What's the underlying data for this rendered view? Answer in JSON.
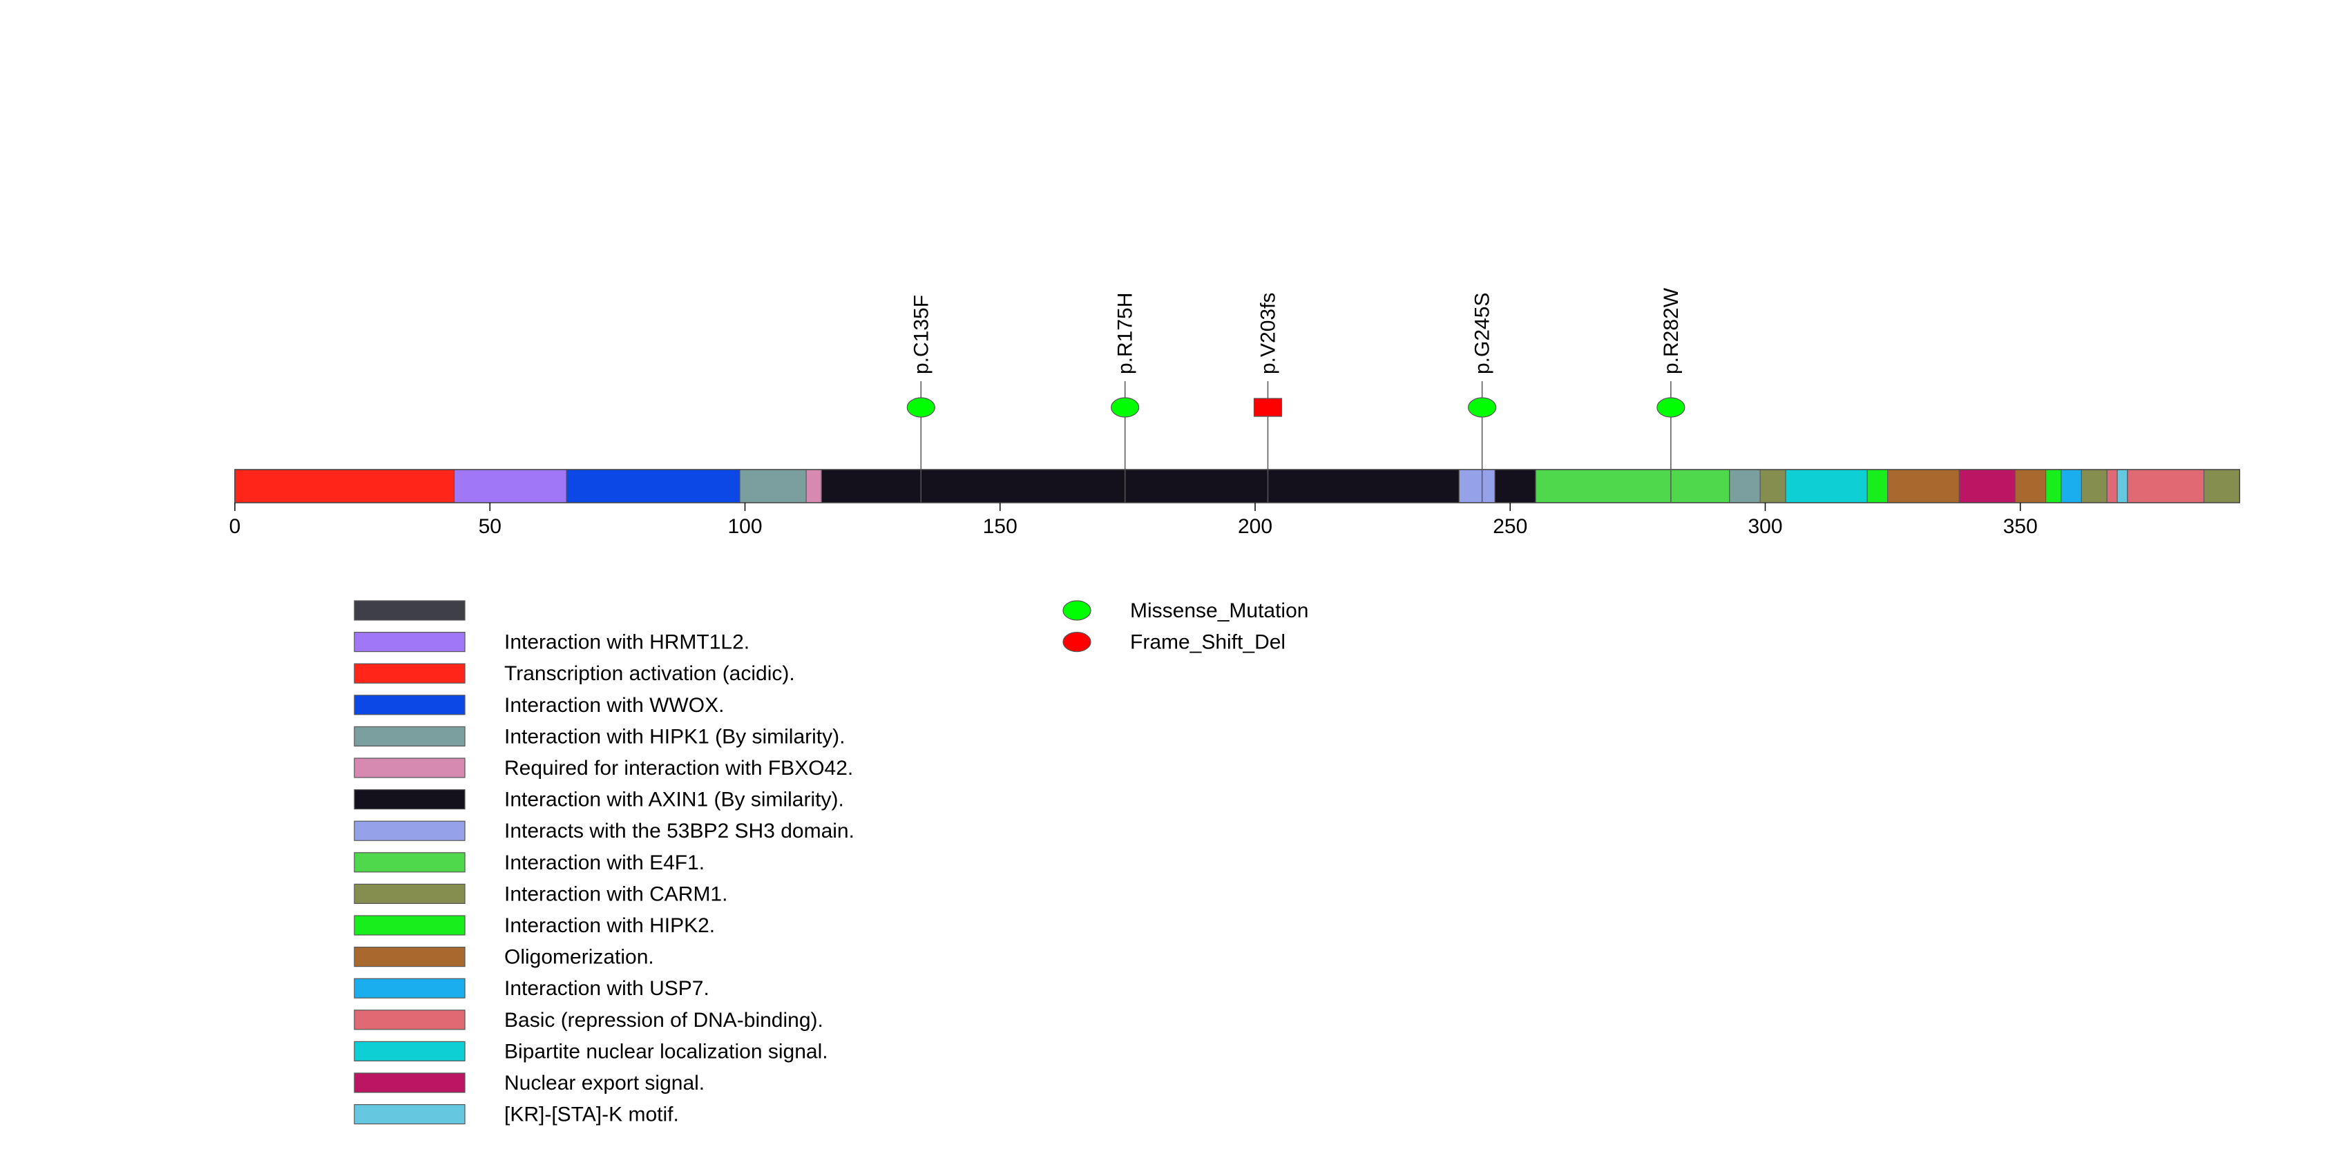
{
  "chart_data": {
    "type": "lollipop",
    "title": "",
    "protein_length": 393,
    "x_ticks": [
      0,
      50,
      100,
      150,
      200,
      250,
      300,
      350
    ],
    "domains": [
      {
        "start": 1,
        "end": 43,
        "color": "#ff2519",
        "label": "Transcription activation (acidic)."
      },
      {
        "start": 44,
        "end": 65,
        "color": "#a077f6",
        "label": "Interaction with HRMT1L2."
      },
      {
        "start": 66,
        "end": 99,
        "color": "#0c48e6",
        "label": "Interaction with WWOX."
      },
      {
        "start": 100,
        "end": 112,
        "color": "#7b9e9e",
        "label": "Interaction with HIPK1 (By similarity)."
      },
      {
        "start": 113,
        "end": 115,
        "color": "#d78ab1",
        "label": "Required for interaction with FBXO42."
      },
      {
        "start": 116,
        "end": 240,
        "color": "#14111c",
        "label": "Interaction with AXIN1 (By similarity)."
      },
      {
        "start": 241,
        "end": 247,
        "color": "#95a2ea",
        "label": "Interacts with the 53BP2 SH3 domain."
      },
      {
        "start": 248,
        "end": 255,
        "color": "#14111c",
        "label": ""
      },
      {
        "start": 256,
        "end": 293,
        "color": "#4fd84b",
        "label": "Interaction with E4F1."
      },
      {
        "start": 294,
        "end": 299,
        "color": "#7b9e9e",
        "label": ""
      },
      {
        "start": 300,
        "end": 304,
        "color": "#858e4e",
        "label": "Interaction with CARM1."
      },
      {
        "start": 305,
        "end": 320,
        "color": "#0ecfd3",
        "label": "Bipartite nuclear localization signal."
      },
      {
        "start": 321,
        "end": 324,
        "color": "#18ee1c",
        "label": "Interaction with HIPK2."
      },
      {
        "start": 325,
        "end": 338,
        "color": "#a9692e",
        "label": "Oligomerization."
      },
      {
        "start": 339,
        "end": 349,
        "color": "#bc1563",
        "label": "Nuclear export signal."
      },
      {
        "start": 350,
        "end": 355,
        "color": "#a9692e",
        "label": ""
      },
      {
        "start": 356,
        "end": 358,
        "color": "#18ee1c",
        "label": ""
      },
      {
        "start": 359,
        "end": 362,
        "color": "#1aaeee",
        "label": "Interaction with USP7."
      },
      {
        "start": 363,
        "end": 367,
        "color": "#858e4e",
        "label": ""
      },
      {
        "start": 368,
        "end": 369,
        "color": "#df6a73",
        "label": ""
      },
      {
        "start": 370,
        "end": 371,
        "color": "#66c8e0",
        "label": "[KR]-[STA]-K motif."
      },
      {
        "start": 372,
        "end": 386,
        "color": "#df6a73",
        "label": "Basic (repression of DNA-binding)."
      },
      {
        "start": 387,
        "end": 393,
        "color": "#858e4e",
        "label": ""
      }
    ],
    "mutations": [
      {
        "position": 135,
        "label": "p.C135F",
        "type": "Missense_Mutation"
      },
      {
        "position": 175,
        "label": "p.R175H",
        "type": "Missense_Mutation"
      },
      {
        "position": 203,
        "label": "p.V203fs",
        "type": "Frame_Shift_Del"
      },
      {
        "position": 245,
        "label": "p.G245S",
        "type": "Missense_Mutation"
      },
      {
        "position": 282,
        "label": "p.R282W",
        "type": "Missense_Mutation"
      }
    ],
    "mutation_legend": [
      {
        "type": "Missense_Mutation",
        "label": "Missense_Mutation",
        "color": "#00ff00"
      },
      {
        "type": "Frame_Shift_Del",
        "label": "Frame_Shift_Del",
        "color": "#ff0000"
      }
    ],
    "domain_legend": [
      {
        "label": "",
        "color": "#3f3f48"
      },
      {
        "label": "Interaction with HRMT1L2.",
        "color": "#a077f6"
      },
      {
        "label": "Transcription activation (acidic).",
        "color": "#ff2519"
      },
      {
        "label": "Interaction with WWOX.",
        "color": "#0c48e6"
      },
      {
        "label": "Interaction with HIPK1 (By similarity).",
        "color": "#7b9e9e"
      },
      {
        "label": "Required for interaction with FBXO42.",
        "color": "#d78ab1"
      },
      {
        "label": "Interaction with AXIN1 (By similarity).",
        "color": "#14111c"
      },
      {
        "label": "Interacts with the 53BP2 SH3 domain.",
        "color": "#95a2ea"
      },
      {
        "label": "Interaction with E4F1.",
        "color": "#4fd84b"
      },
      {
        "label": "Interaction with CARM1.",
        "color": "#858e4e"
      },
      {
        "label": "Interaction with HIPK2.",
        "color": "#18ee1c"
      },
      {
        "label": "Oligomerization.",
        "color": "#a9692e"
      },
      {
        "label": "Interaction with USP7.",
        "color": "#1aaeee"
      },
      {
        "label": "Basic (repression of DNA-binding).",
        "color": "#df6a73"
      },
      {
        "label": "Bipartite nuclear localization signal.",
        "color": "#0ecfd3"
      },
      {
        "label": "Nuclear export signal.",
        "color": "#bc1563"
      },
      {
        "label": "[KR]-[STA]-K motif.",
        "color": "#66c8e0"
      }
    ]
  }
}
